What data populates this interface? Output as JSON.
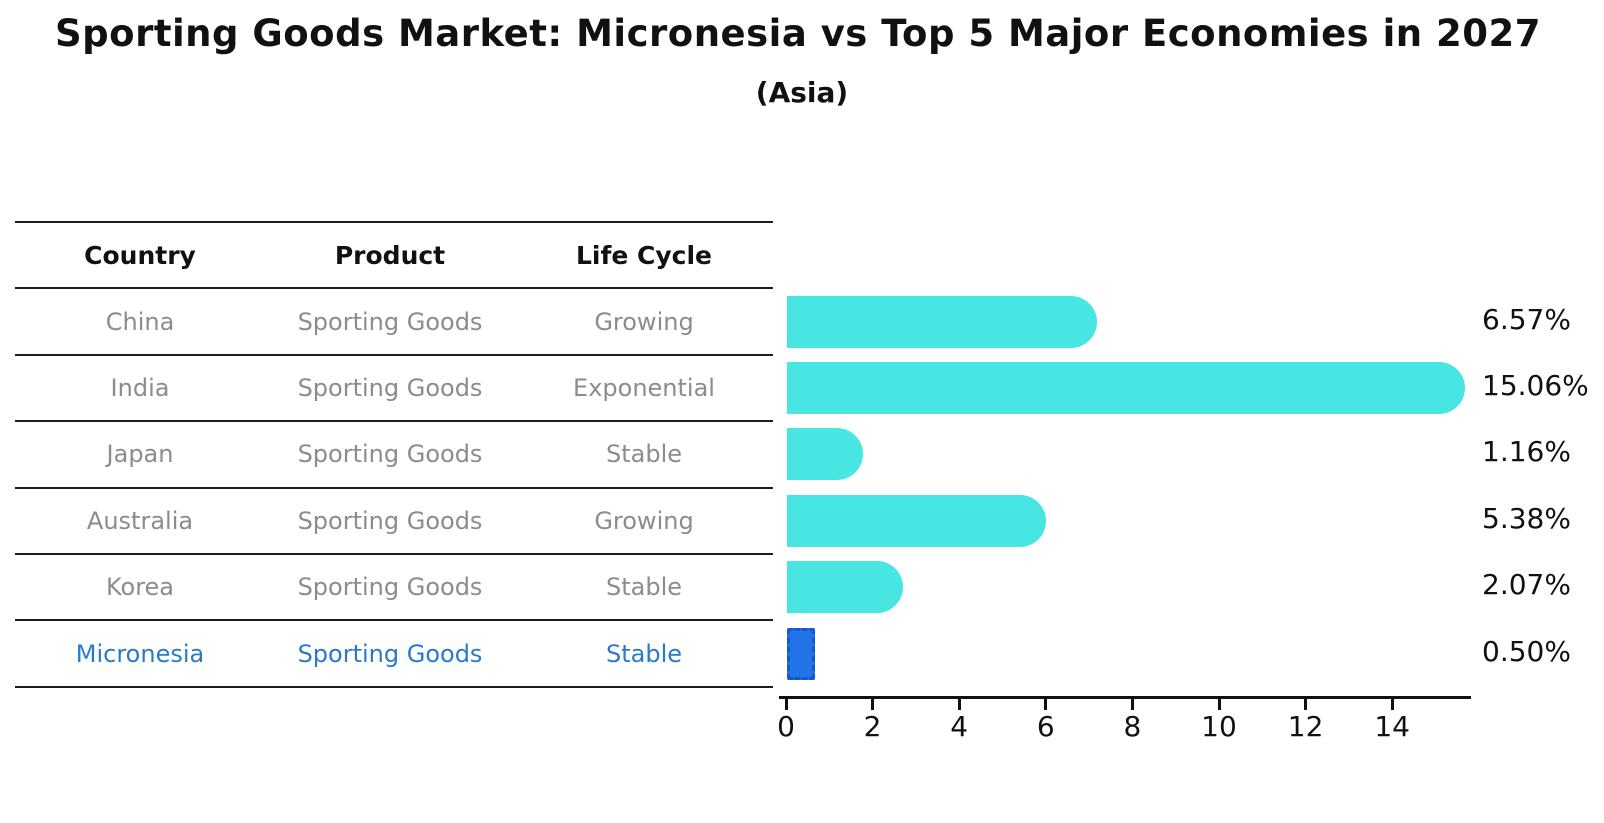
{
  "table": {
    "headers": [
      "Country",
      "Product",
      "Life Cycle"
    ],
    "rows": [
      {
        "country": "China",
        "product": "Sporting Goods",
        "life_cycle": "Growing",
        "highlighted": false
      },
      {
        "country": "India",
        "product": "Sporting Goods",
        "life_cycle": "Exponential",
        "highlighted": false
      },
      {
        "country": "Japan",
        "product": "Sporting Goods",
        "life_cycle": "Stable",
        "highlighted": false
      },
      {
        "country": "Australia",
        "product": "Sporting Goods",
        "life_cycle": "Growing",
        "highlighted": false
      },
      {
        "country": "Korea",
        "product": "Sporting Goods",
        "life_cycle": "Stable",
        "highlighted": false
      },
      {
        "country": "Micronesia",
        "product": "Sporting Goods",
        "life_cycle": "Stable",
        "highlighted": true
      }
    ]
  },
  "chart_data": {
    "type": "bar",
    "orientation": "horizontal",
    "title": "Sporting Goods Market: Micronesia vs Top 5 Major Economies in 2027",
    "subtitle": "(Asia)",
    "categories": [
      "China",
      "India",
      "Japan",
      "Australia",
      "Korea",
      "Micronesia"
    ],
    "values": [
      6.57,
      15.06,
      1.16,
      5.38,
      2.07,
      0.5
    ],
    "value_labels": [
      "6.57%",
      "15.06%",
      "1.16%",
      "5.38%",
      "2.07%",
      "0.50%"
    ],
    "x_ticks": [
      0,
      2,
      4,
      6,
      8,
      10,
      12,
      14
    ],
    "xlim": [
      0,
      15.8
    ],
    "xlabel": "",
    "ylabel": "",
    "grid": false,
    "legend": null,
    "bar_color": "#47e6e2",
    "highlight_index": 5,
    "highlight_bar_color": "#2274e8",
    "highlight_border_color": "#1259cf",
    "highlight_text_color": "#2b7ac9",
    "axis_color": "#111111",
    "muted_text_color": "#8c8c8c"
  }
}
